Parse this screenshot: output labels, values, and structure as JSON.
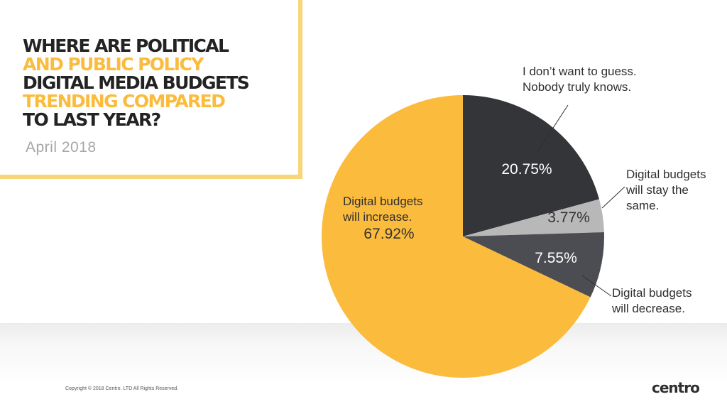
{
  "title_lines": [
    {
      "text": "WHERE ARE POLITICAL",
      "color": "#232323"
    },
    {
      "text": "AND PUBLIC POLICY",
      "color": "#fbbb3c"
    },
    {
      "text": "DIGITAL MEDIA BUDGETS",
      "color": "#232323"
    },
    {
      "text": "TRENDING COMPARED",
      "color": "#fbbb3c"
    },
    {
      "text": "TO LAST YEAR?",
      "color": "#232323"
    }
  ],
  "date": "April 2018",
  "chart_data": {
    "type": "pie",
    "title": "WHERE ARE POLITICAL AND PUBLIC POLICY DIGITAL MEDIA BUDGETS TRENDING COMPARED TO LAST YEAR?",
    "slices": [
      {
        "label_lines": [
          "I don’t want to guess.",
          "Nobody truly knows."
        ],
        "value": 20.75,
        "value_label": "20.75%",
        "color": "#333539"
      },
      {
        "label_lines": [
          "Digital budgets",
          "will stay the",
          "same."
        ],
        "value": 3.77,
        "value_label": "3.77%",
        "color": "#b8b8b8"
      },
      {
        "label_lines": [
          "Digital budgets",
          "will decrease."
        ],
        "value": 7.55,
        "value_label": "7.55%",
        "color": "#4b4d52"
      },
      {
        "label_lines": [
          "Digital budgets",
          "will increase."
        ],
        "value": 67.92,
        "value_label": "67.92%",
        "color": "#fbbb3c"
      }
    ]
  },
  "footer": "Copyright © 2018 Centro. LTD All Rights Reserved.",
  "logo_text": "centro"
}
